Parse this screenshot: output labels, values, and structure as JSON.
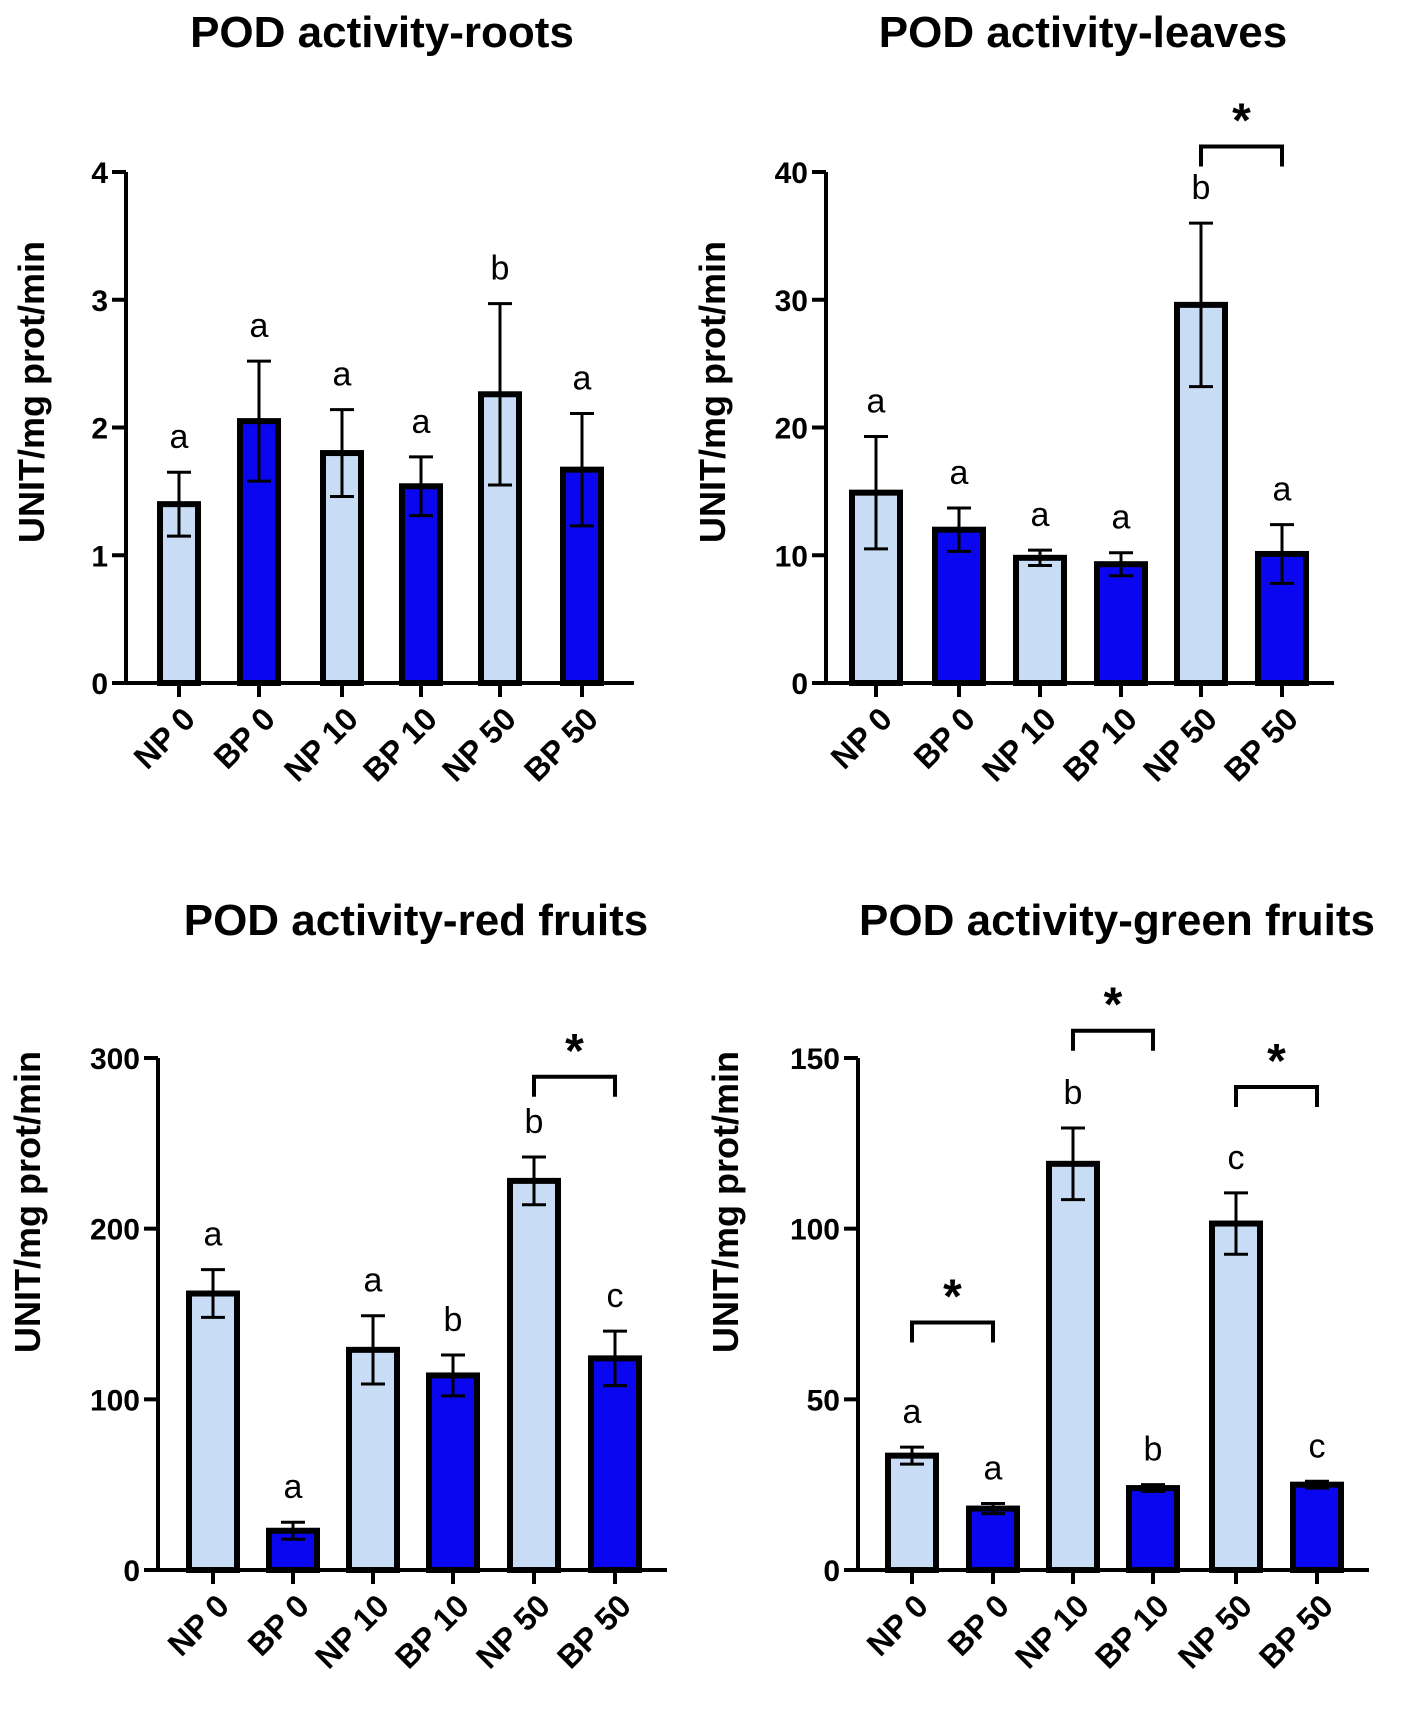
{
  "colors": {
    "np": "#c9dcf5",
    "bp": "#0a06f0",
    "stroke": "#000000"
  },
  "chart_data": [
    {
      "type": "bar",
      "title": "POD activity-roots",
      "ylabel": "UNIT/mg prot/min",
      "xlabel": "",
      "categories": [
        "NP 0",
        "BP 0",
        "NP 10",
        "BP 10",
        "NP 50",
        "BP 50"
      ],
      "values": [
        1.4,
        2.05,
        1.8,
        1.54,
        2.26,
        1.67
      ],
      "errors": [
        0.25,
        0.47,
        0.34,
        0.23,
        0.71,
        0.44
      ],
      "letters": [
        "a",
        "a",
        "a",
        "a",
        "b",
        "a"
      ],
      "ylim": [
        0,
        4
      ],
      "yticks": [
        0,
        1,
        2,
        3,
        4
      ],
      "ytick_labels": [
        "0",
        "1",
        "2",
        "3",
        "4"
      ],
      "significance": []
    },
    {
      "type": "bar",
      "title": "POD activity-leaves",
      "ylabel": "UNIT/mg prot/min",
      "xlabel": "",
      "categories": [
        "NP 0",
        "BP 0",
        "NP 10",
        "BP 10",
        "NP 50",
        "BP 50"
      ],
      "values": [
        14.9,
        12.0,
        9.8,
        9.3,
        29.6,
        10.1
      ],
      "errors": [
        4.4,
        1.7,
        0.6,
        0.9,
        6.4,
        2.3
      ],
      "letters": [
        "a",
        "a",
        "a",
        "a",
        "b",
        "a"
      ],
      "ylim": [
        0,
        40
      ],
      "yticks": [
        0,
        10,
        20,
        30,
        40
      ],
      "ytick_labels": [
        "0",
        "10",
        "20",
        "30",
        "40"
      ],
      "significance": [
        {
          "from": 4,
          "to": 5,
          "level": 42.0,
          "label": "*"
        }
      ]
    },
    {
      "type": "bar",
      "title": "POD activity-red fruits",
      "ylabel": "UNIT/mg prot/min",
      "xlabel": "",
      "categories": [
        "NP 0",
        "BP 0",
        "NP 10",
        "BP 10",
        "NP 50",
        "BP 50"
      ],
      "values": [
        162,
        23,
        129,
        114,
        228,
        124
      ],
      "errors": [
        14,
        5,
        20,
        12,
        14,
        16
      ],
      "letters": [
        "a",
        "a",
        "a",
        "b",
        "b",
        "c"
      ],
      "ylim": [
        0,
        300
      ],
      "yticks": [
        0,
        100,
        200,
        300
      ],
      "ytick_labels": [
        "0",
        "100",
        "200",
        "300"
      ],
      "significance": [
        {
          "from": 4,
          "to": 5,
          "level": 289,
          "label": "*"
        }
      ]
    },
    {
      "type": "bar",
      "title": "POD activity-green fruits",
      "ylabel": "UNIT/mg prot/min",
      "xlabel": "",
      "categories": [
        "NP 0",
        "BP 0",
        "NP 10",
        "BP 10",
        "NP 50",
        "BP 50"
      ],
      "values": [
        33.5,
        18.0,
        119.0,
        24.0,
        101.5,
        25.0
      ],
      "errors": [
        2.5,
        1.5,
        10.5,
        1.0,
        9.0,
        1.0
      ],
      "letters": [
        "a",
        "a",
        "b",
        "b",
        "c",
        "c"
      ],
      "ylim": [
        0,
        150
      ],
      "yticks": [
        0,
        50,
        100,
        150
      ],
      "ytick_labels": [
        "0",
        "50",
        "100",
        "150"
      ],
      "significance": [
        {
          "from": 0,
          "to": 1,
          "level": 72.5,
          "label": "*"
        },
        {
          "from": 2,
          "to": 3,
          "level": 158,
          "label": "*"
        },
        {
          "from": 4,
          "to": 5,
          "level": 141.5,
          "label": "*"
        }
      ]
    }
  ]
}
